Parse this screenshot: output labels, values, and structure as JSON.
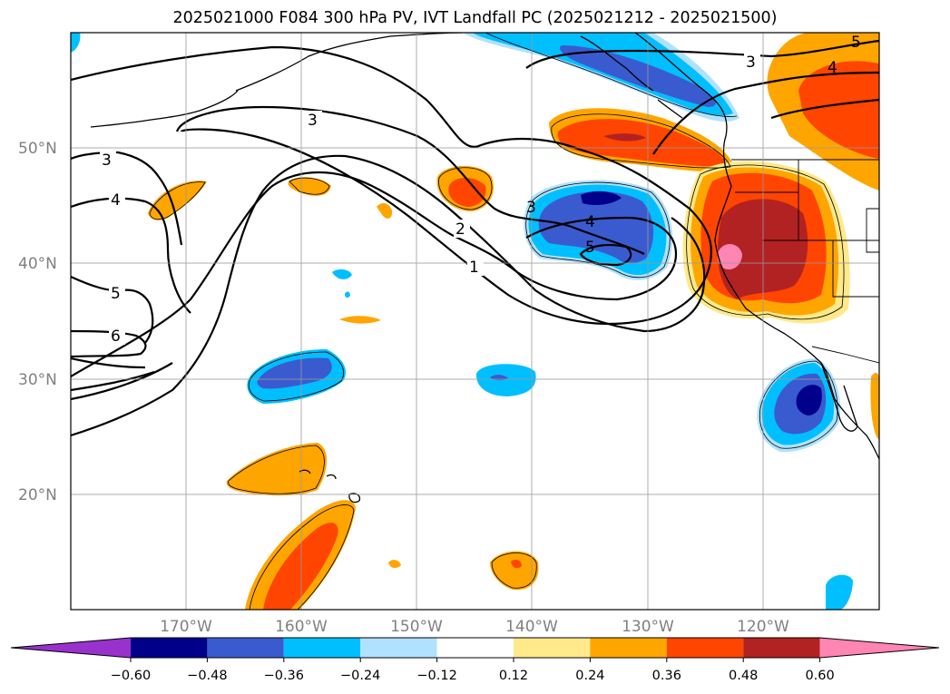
{
  "title": "2025021000 F084 300 hPa PV, IVT Landfall PC (2025021212 - 2025021500)",
  "map": {
    "lat_labels": [
      "50°N",
      "40°N",
      "30°N",
      "20°N"
    ],
    "lon_labels": [
      "170°W",
      "160°W",
      "150°W",
      "140°W",
      "130°W",
      "120°W"
    ]
  },
  "contour_labels": [
    "3",
    "4",
    "5",
    "6",
    "3",
    "2",
    "1",
    "3",
    "4",
    "5",
    "3",
    "4",
    "5"
  ],
  "colorbar": {
    "colors": [
      "#9932CC",
      "#00008B",
      "#3A5BCF",
      "#00BFFF",
      "#B0E2FF",
      "#FFFFFF",
      "#FFE98A",
      "#FFA500",
      "#FF4500",
      "#B22222",
      "#FF85B2"
    ],
    "tick_labels": [
      "−0.60",
      "−0.48",
      "−0.36",
      "−0.24",
      "−0.12",
      "0.12",
      "0.24",
      "0.36",
      "0.48",
      "0.60"
    ]
  }
}
